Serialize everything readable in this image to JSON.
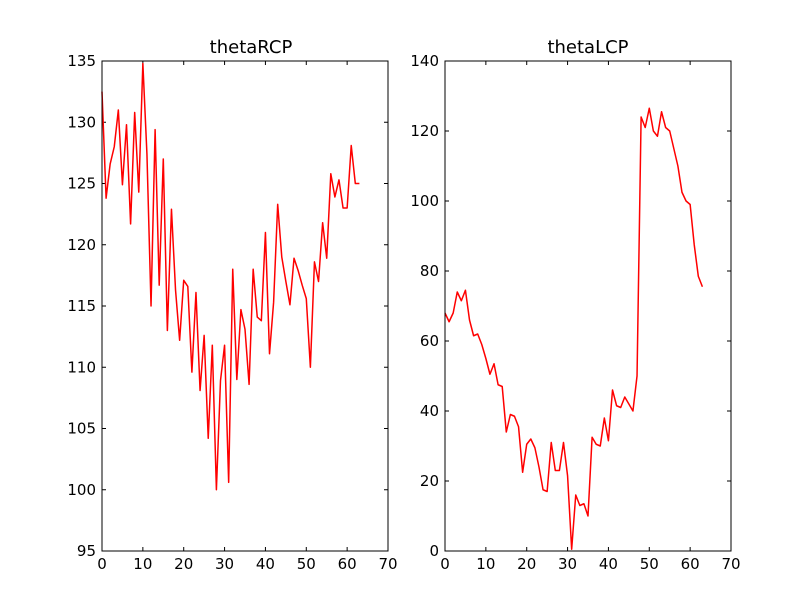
{
  "chart_data": [
    {
      "type": "line",
      "title": "thetaRCP",
      "xlabel": "",
      "ylabel": "",
      "xlim": [
        0,
        70
      ],
      "ylim": [
        95,
        135
      ],
      "xticks": [
        "0",
        "10",
        "20",
        "30",
        "40",
        "50",
        "60",
        "70"
      ],
      "yticks": [
        "95",
        "100",
        "105",
        "110",
        "115",
        "120",
        "125",
        "130",
        "135"
      ],
      "color": "#ff0000",
      "series": [
        {
          "name": "thetaRCP",
          "x": [
            0,
            1,
            2,
            3,
            4,
            5,
            6,
            7,
            8,
            9,
            10,
            11,
            12,
            13,
            14,
            15,
            16,
            17,
            18,
            19,
            20,
            21,
            22,
            23,
            24,
            25,
            26,
            27,
            28,
            29,
            30,
            31,
            32,
            33,
            34,
            35,
            36,
            37,
            38,
            39,
            40,
            41,
            42,
            43,
            44,
            45,
            46,
            47,
            48,
            49,
            50,
            51,
            52,
            53,
            54,
            55,
            56,
            57,
            58,
            59,
            60,
            61,
            62,
            63
          ],
          "values": [
            132.5,
            123.8,
            126.6,
            128.0,
            131.0,
            124.9,
            129.8,
            121.7,
            130.8,
            124.3,
            134.8,
            127.4,
            115.0,
            129.4,
            116.7,
            127.0,
            113.0,
            122.9,
            116.3,
            112.2,
            117.1,
            116.6,
            109.6,
            116.1,
            108.1,
            112.6,
            104.2,
            111.8,
            100.0,
            108.9,
            111.8,
            100.6,
            118.0,
            109.0,
            114.7,
            113.1,
            108.6,
            118.0,
            114.1,
            113.8,
            121.0,
            111.1,
            115.3,
            123.3,
            119.0,
            117.0,
            115.1,
            118.9,
            117.9,
            116.7,
            115.6,
            110.0,
            118.6,
            117.0,
            121.8,
            118.9,
            125.8,
            123.9,
            125.3,
            123.0,
            123.0,
            128.1,
            125.0,
            125.0
          ]
        }
      ]
    },
    {
      "type": "line",
      "title": "thetaLCP",
      "xlabel": "",
      "ylabel": "",
      "xlim": [
        0,
        70
      ],
      "ylim": [
        0,
        140
      ],
      "xticks": [
        "0",
        "10",
        "20",
        "30",
        "40",
        "50",
        "60",
        "70"
      ],
      "yticks": [
        "0",
        "20",
        "40",
        "60",
        "80",
        "100",
        "120",
        "140"
      ],
      "color": "#ff0000",
      "series": [
        {
          "name": "thetaLCP",
          "x": [
            0,
            1,
            2,
            3,
            4,
            5,
            6,
            7,
            8,
            9,
            10,
            11,
            12,
            13,
            14,
            15,
            16,
            17,
            18,
            19,
            20,
            21,
            22,
            23,
            24,
            25,
            26,
            27,
            28,
            29,
            30,
            31,
            32,
            33,
            34,
            35,
            36,
            37,
            38,
            39,
            40,
            41,
            42,
            43,
            44,
            45,
            46,
            47,
            48,
            49,
            50,
            51,
            52,
            53,
            54,
            55,
            56,
            57,
            58,
            59,
            60,
            61,
            62,
            63
          ],
          "values": [
            68.0,
            65.5,
            68.0,
            74.0,
            71.5,
            74.5,
            66.0,
            61.5,
            62.0,
            59.0,
            55.0,
            50.5,
            53.5,
            47.5,
            47.0,
            34.0,
            39.0,
            38.5,
            35.5,
            22.5,
            30.5,
            32.0,
            29.5,
            24.0,
            17.5,
            17.0,
            31.0,
            23.0,
            23.0,
            31.0,
            21.5,
            0.5,
            16.0,
            13.0,
            13.5,
            10.0,
            32.5,
            30.5,
            30.0,
            38.0,
            31.5,
            46.0,
            41.5,
            41.0,
            44.0,
            42.0,
            40.0,
            50.0,
            124.0,
            121.0,
            126.5,
            120.0,
            118.5,
            125.5,
            121.0,
            120.0,
            115.0,
            110.0,
            102.5,
            100.0,
            99.0,
            87.5,
            78.5,
            75.5
          ]
        }
      ]
    }
  ]
}
